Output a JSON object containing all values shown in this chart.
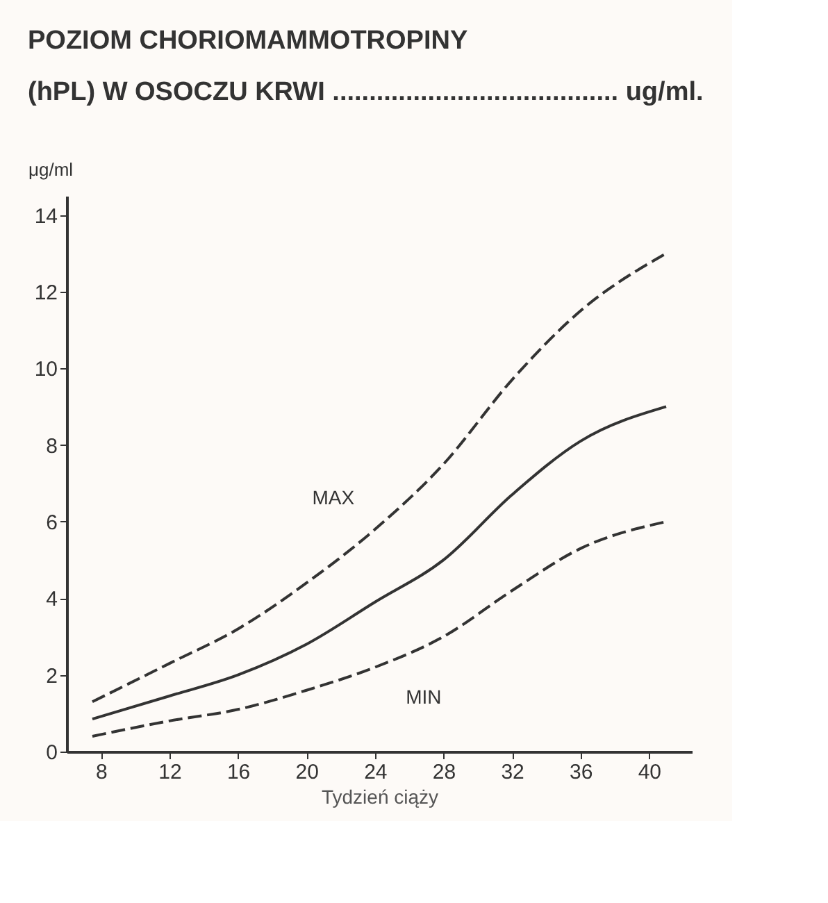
{
  "chart_data": {
    "type": "line",
    "title": "POZIOM   CHORIOMAMMOTROPINY",
    "subtitle": "(hPL) W OSOCZU KRWI ....................................... ug/ml.",
    "xlabel": "Tydzień ciąży",
    "ylabel": "μg/ml",
    "x": [
      7.5,
      12,
      16,
      20,
      24,
      28,
      32,
      36,
      41
    ],
    "series": [
      {
        "name": "MAX",
        "color": "#333333",
        "line_style": "dashed",
        "values": [
          1.3,
          2.3,
          3.2,
          4.4,
          5.8,
          7.5,
          9.7,
          11.5,
          13.0
        ]
      },
      {
        "color": "#333333",
        "line_style": "solid",
        "values": [
          0.85,
          1.45,
          2.0,
          2.8,
          3.9,
          5.0,
          6.7,
          8.1,
          9.0
        ]
      },
      {
        "name": "MIN",
        "color": "#333333",
        "line_style": "dashed",
        "values": [
          0.4,
          0.8,
          1.1,
          1.6,
          2.2,
          3.0,
          4.2,
          5.3,
          6.0
        ]
      }
    ],
    "xlim": [
      6,
      42.5
    ],
    "xticks": [
      8,
      12,
      16,
      20,
      24,
      28,
      32,
      36,
      40
    ],
    "ylim": [
      0,
      14.5
    ],
    "yticks": [
      0,
      2,
      4,
      6,
      8,
      10,
      12,
      14
    ],
    "grid": false,
    "marker": "none"
  }
}
